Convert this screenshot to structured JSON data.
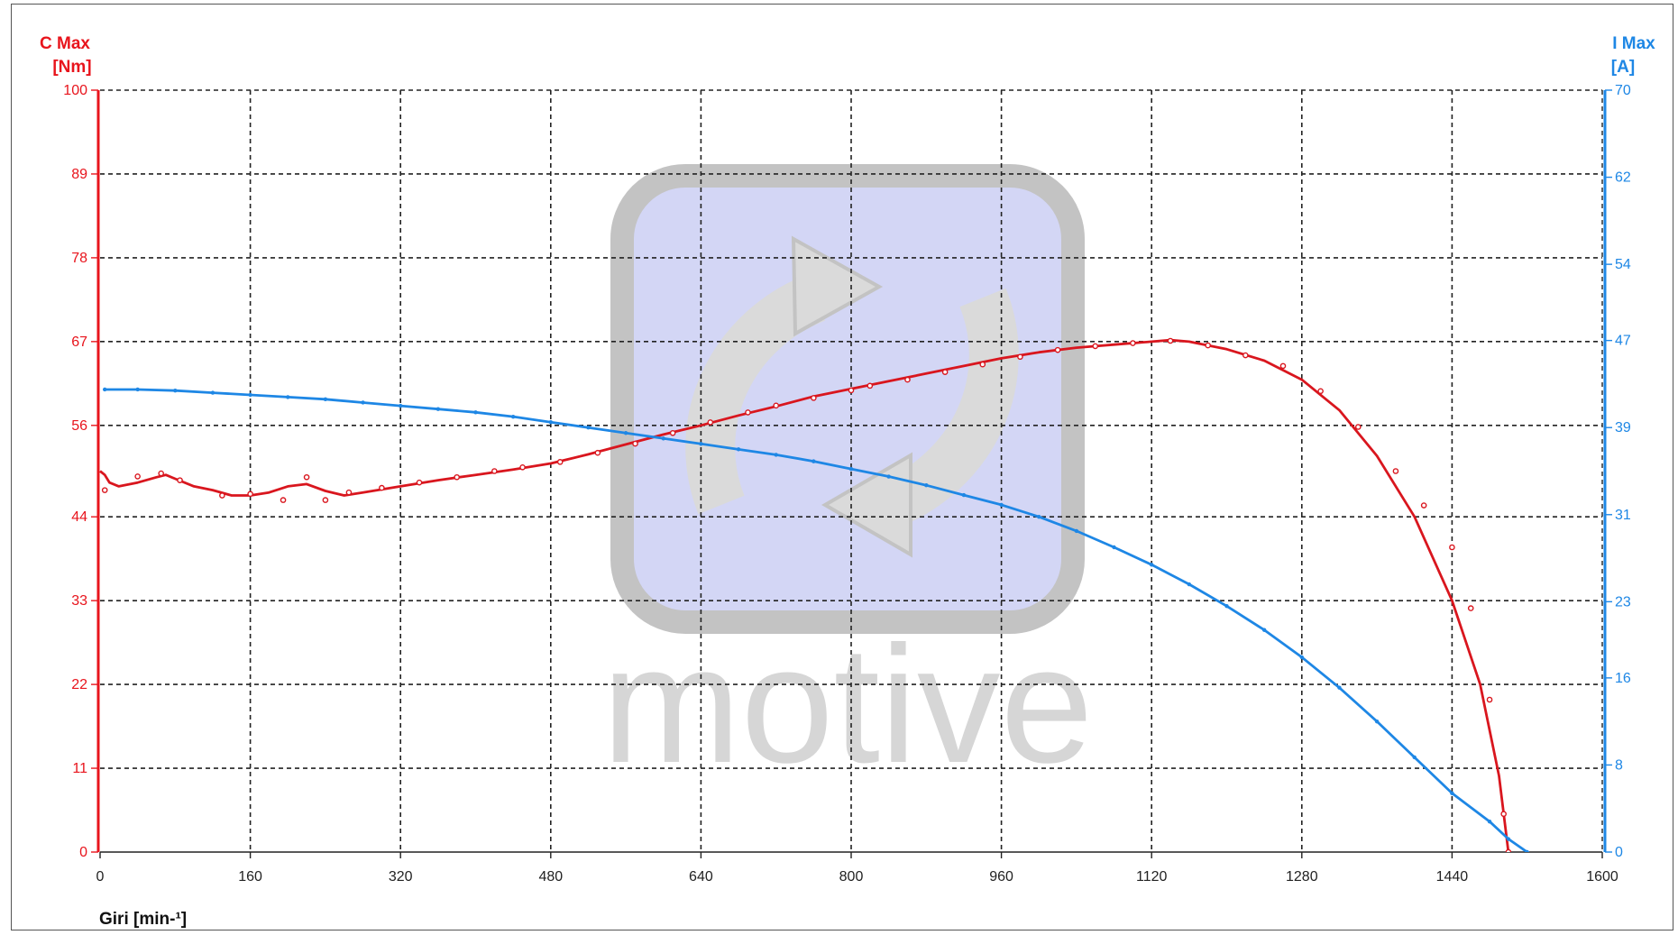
{
  "chart_data": {
    "type": "line",
    "title": "",
    "xlabel": "Giri [min-¹]",
    "ylabel_left": [
      "C Max",
      "[Nm]"
    ],
    "ylabel_right": [
      "I Max",
      "[A]"
    ],
    "xlim": [
      0,
      1600
    ],
    "ylim_left": [
      0,
      100
    ],
    "ylim_right": [
      0,
      70
    ],
    "x_ticks": [
      0,
      160,
      320,
      480,
      640,
      800,
      960,
      1120,
      1280,
      1440,
      1600
    ],
    "y_left_ticks": [
      0,
      11,
      22,
      33,
      44,
      56,
      67,
      78,
      89,
      100
    ],
    "y_right_ticks": [
      0,
      8,
      16,
      23,
      31,
      39,
      47,
      54,
      62,
      70
    ],
    "grid": true,
    "watermark": "motive",
    "colors": {
      "left_axis": "#e8141c",
      "right_axis": "#1e87e5",
      "grid": "#222222"
    },
    "series": [
      {
        "name": "",
        "axis": "left",
        "color": "#d9161e",
        "x": [
          0,
          5,
          10,
          20,
          40,
          60,
          70,
          80,
          100,
          120,
          140,
          160,
          180,
          200,
          220,
          240,
          260,
          280,
          320,
          360,
          400,
          440,
          480,
          520,
          560,
          600,
          640,
          680,
          720,
          760,
          800,
          840,
          880,
          920,
          960,
          1000,
          1040,
          1080,
          1120,
          1140,
          1160,
          1200,
          1240,
          1280,
          1320,
          1360,
          1400,
          1440,
          1470,
          1490,
          1500
        ],
        "y": [
          50,
          49.5,
          48.5,
          48,
          48.5,
          49.2,
          49.5,
          49,
          48,
          47.5,
          46.8,
          46.8,
          47.2,
          48,
          48.3,
          47.4,
          46.8,
          47.2,
          48,
          48.8,
          49.5,
          50.2,
          51,
          52.2,
          53.5,
          54.8,
          56,
          57.3,
          58.5,
          59.8,
          60.8,
          61.8,
          62.8,
          63.8,
          64.8,
          65.6,
          66.2,
          66.6,
          67,
          67.2,
          67,
          66,
          64.5,
          62,
          58,
          52,
          44,
          33,
          22,
          10,
          0
        ],
        "markers_x": [
          5,
          40,
          65,
          85,
          130,
          160,
          195,
          220,
          240,
          265,
          300,
          340,
          380,
          420,
          450,
          490,
          530,
          570,
          610,
          650,
          690,
          720,
          760,
          800,
          820,
          860,
          900,
          940,
          980,
          1020,
          1060,
          1100,
          1140,
          1180,
          1220,
          1260,
          1300,
          1340,
          1380,
          1410,
          1440,
          1460,
          1480,
          1495,
          1500
        ],
        "markers_y": [
          47.5,
          49.3,
          49.7,
          48.8,
          46.8,
          47,
          46.2,
          49.2,
          46.2,
          47.2,
          47.8,
          48.5,
          49.2,
          50,
          50.5,
          51.2,
          52.4,
          53.6,
          55,
          56.4,
          57.7,
          58.6,
          59.6,
          60.6,
          61.2,
          62,
          63,
          64,
          65,
          65.9,
          66.4,
          66.8,
          67.1,
          66.5,
          65.2,
          63.8,
          60.5,
          55.8,
          50,
          45.5,
          40,
          32,
          20,
          5,
          0
        ]
      },
      {
        "name": "",
        "axis": "right",
        "color": "#1e87e5",
        "x": [
          5,
          40,
          80,
          120,
          160,
          200,
          240,
          280,
          320,
          360,
          400,
          440,
          480,
          520,
          560,
          600,
          640,
          680,
          720,
          760,
          800,
          840,
          880,
          920,
          960,
          1000,
          1040,
          1080,
          1120,
          1160,
          1200,
          1240,
          1280,
          1320,
          1360,
          1400,
          1440,
          1480,
          1500,
          1520
        ],
        "y": [
          42.5,
          42.5,
          42.4,
          42.2,
          42,
          41.8,
          41.6,
          41.3,
          41,
          40.7,
          40.4,
          40,
          39.5,
          39,
          38.5,
          38,
          37.5,
          37,
          36.5,
          35.9,
          35.2,
          34.5,
          33.7,
          32.8,
          31.9,
          30.8,
          29.5,
          28,
          26.4,
          24.6,
          22.6,
          20.4,
          17.9,
          15.1,
          12,
          8.7,
          5.4,
          2.8,
          1.2,
          0
        ]
      }
    ]
  }
}
